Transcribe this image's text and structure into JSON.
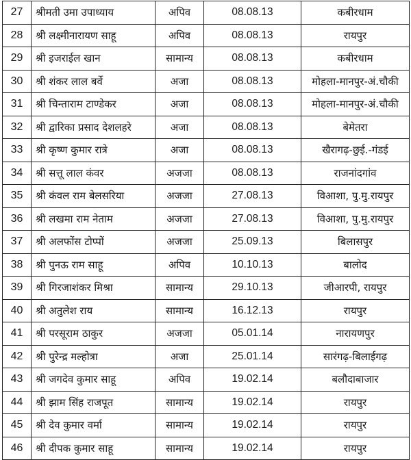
{
  "rows": [
    {
      "sn": "27",
      "name": "श्रीमती उमा उपाध्याय",
      "category": "अपिव",
      "date": "08.08.13",
      "place": "कबीरधाम"
    },
    {
      "sn": "28",
      "name": "श्री लक्ष्मीनारायण साहू",
      "category": "अपिव",
      "date": "08.08.13",
      "place": "रायपुर"
    },
    {
      "sn": "29",
      "name": "श्री इजराईल खान",
      "category": "सामान्य",
      "date": "08.08.13",
      "place": "कबीरधाम"
    },
    {
      "sn": "30",
      "name": "श्री शंकर लाल बर्वे",
      "category": "अजा",
      "date": "08.08.13",
      "place": "मोहला-मानपुर-अं.चौकी"
    },
    {
      "sn": "31",
      "name": "श्री चिन्ताराम टाण्डेकर",
      "category": "अजा",
      "date": "08.08.13",
      "place": "मोहला-मानपुर-अं.चौकी"
    },
    {
      "sn": "32",
      "name": "श्री द्वारिका प्रसाद देशलहरे",
      "category": "अजा",
      "date": "08.08.13",
      "place": "बेमेतरा"
    },
    {
      "sn": "33",
      "name": "श्री कृष्ण कुमार रात्रे",
      "category": "अजा",
      "date": "08.08.13",
      "place": "खैरागढ़-छुई.-गंडई"
    },
    {
      "sn": "34",
      "name": "श्री सत्तू लाल कंवर",
      "category": "अजजा",
      "date": "08.08.13",
      "place": "राजनांदगांव"
    },
    {
      "sn": "35",
      "name": "श्री कंवल राम बेलसरिया",
      "category": "अजजा",
      "date": "27.08.13",
      "place": "विआशा, पु.मु.रायपुर"
    },
    {
      "sn": "36",
      "name": "श्री लखमा राम नेताम",
      "category": "अजजा",
      "date": "27.08.13",
      "place": "विआशा, पु.मु.रायपुर"
    },
    {
      "sn": "37",
      "name": "श्री अलफोंस टोप्पों",
      "category": "अजजा",
      "date": "25.09.13",
      "place": "बिलासपुर"
    },
    {
      "sn": "38",
      "name": "श्री पुनऊ राम साहू",
      "category": "अपिव",
      "date": "10.10.13",
      "place": "बालोद"
    },
    {
      "sn": "39",
      "name": "श्री गिरजाशंकर मिश्रा",
      "category": "सामान्य",
      "date": "29.10.13",
      "place": "जीआरपी, रायपुर"
    },
    {
      "sn": "40",
      "name": "श्री अतुलेश राय",
      "category": "सामान्य",
      "date": "16.12.13",
      "place": "रायपुर"
    },
    {
      "sn": "41",
      "name": "श्री परसूराम ठाकुर",
      "category": "अजजा",
      "date": "05.01.14",
      "place": "नारायणपुर"
    },
    {
      "sn": "42",
      "name": "श्री पुरेन्द्र मल्होत्रा",
      "category": "अजा",
      "date": "25.01.14",
      "place": "सारंगढ़-बिलाईगढ़"
    },
    {
      "sn": "43",
      "name": "श्री जगदेव कुमार साहू",
      "category": "अपिव",
      "date": "19.02.14",
      "place": "बलौदाबाजार"
    },
    {
      "sn": "44",
      "name": "श्री झाम सिंह राजपूत",
      "category": "सामान्य",
      "date": "19.02.14",
      "place": "रायपुर"
    },
    {
      "sn": "45",
      "name": "श्री देव कुमार वर्मा",
      "category": "सामान्य",
      "date": "19.02.14",
      "place": "रायपुर"
    },
    {
      "sn": "46",
      "name": "श्री दीपक कुमार साहू",
      "category": "सामान्य",
      "date": "19.02.14",
      "place": "रायपुर"
    }
  ]
}
